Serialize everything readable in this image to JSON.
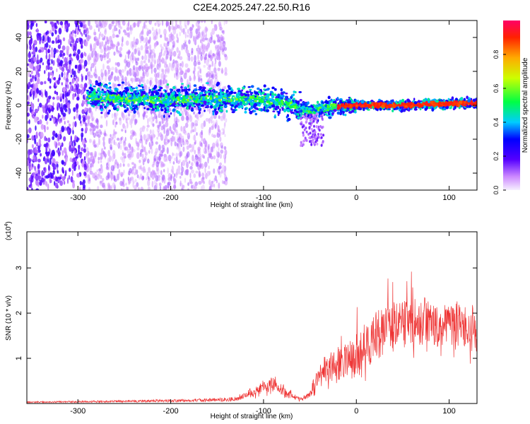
{
  "title": "C2E4.2025.247.22.50.R16",
  "chart_data": [
    {
      "type": "heatmap",
      "xlabel": "Height of straight line (km)",
      "ylabel": "Frequency (Hz)",
      "xlim": [
        -355,
        130
      ],
      "ylim": [
        -50,
        50
      ],
      "x_ticks": [
        -300,
        -200,
        -100,
        0,
        100
      ],
      "y_ticks": [
        -40,
        -20,
        0,
        20,
        40
      ],
      "colorbar": {
        "label": "Normalized spectral amplitude",
        "range": [
          0,
          1
        ],
        "ticks": [
          0.0,
          0.2,
          0.4,
          0.6,
          0.8
        ],
        "tick_labels": [
          "0.0",
          "0.2",
          "0.4",
          "0.6",
          "0.8"
        ]
      },
      "trace_center": [
        {
          "x": -285,
          "y": 5
        },
        {
          "x": -250,
          "y": 4
        },
        {
          "x": -200,
          "y": 3
        },
        {
          "x": -150,
          "y": 4
        },
        {
          "x": -100,
          "y": 3
        },
        {
          "x": -70,
          "y": 0
        },
        {
          "x": -50,
          "y": -4
        },
        {
          "x": -30,
          "y": -1
        },
        {
          "x": 0,
          "y": 0
        },
        {
          "x": 50,
          "y": 0
        },
        {
          "x": 100,
          "y": 1
        },
        {
          "x": 130,
          "y": 1
        }
      ],
      "noise_region": [
        -355,
        -140
      ],
      "peak_region": [
        -20,
        130
      ]
    },
    {
      "type": "line",
      "xlabel": "Height of straight line (km)",
      "ylabel": "SNR (10 * v/v)",
      "y_scale_label": "(x10",
      "y_scale_exp": "4",
      "y_scale_close": ")",
      "xlim": [
        -355,
        130
      ],
      "ylim": [
        0,
        3.8
      ],
      "x_ticks": [
        -300,
        -200,
        -100,
        0,
        100
      ],
      "y_ticks": [
        1,
        2,
        3
      ],
      "series": [
        {
          "color": "#ee3333",
          "envelope": [
            {
              "x": -355,
              "y": 0.03
            },
            {
              "x": -300,
              "y": 0.04
            },
            {
              "x": -200,
              "y": 0.06
            },
            {
              "x": -150,
              "y": 0.08
            },
            {
              "x": -130,
              "y": 0.1
            },
            {
              "x": -110,
              "y": 0.25
            },
            {
              "x": -100,
              "y": 0.35
            },
            {
              "x": -90,
              "y": 0.4
            },
            {
              "x": -80,
              "y": 0.3
            },
            {
              "x": -60,
              "y": 0.1
            },
            {
              "x": -50,
              "y": 0.2
            },
            {
              "x": -40,
              "y": 0.6
            },
            {
              "x": -20,
              "y": 0.9
            },
            {
              "x": 0,
              "y": 1.1
            },
            {
              "x": 20,
              "y": 1.5
            },
            {
              "x": 40,
              "y": 1.7
            },
            {
              "x": 60,
              "y": 1.8
            },
            {
              "x": 80,
              "y": 1.8
            },
            {
              "x": 100,
              "y": 1.75
            },
            {
              "x": 120,
              "y": 1.7
            },
            {
              "x": 130,
              "y": 1.7
            }
          ]
        }
      ]
    }
  ]
}
